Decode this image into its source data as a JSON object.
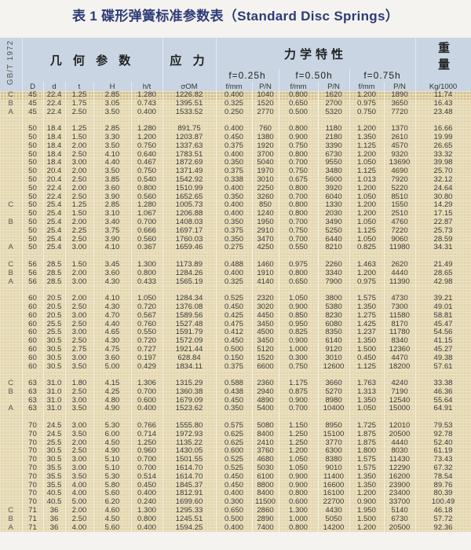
{
  "title": "表 1  碟形弹簧标准参数表（Standard Disc Springs）",
  "header": {
    "standard": "GB/T 1972",
    "geometry": "几 何 参 数",
    "stress": "应 力",
    "mechanics": "力学特性",
    "weight": "重量",
    "f025": "f=0.25h",
    "f050": "f=0.50h",
    "f075": "f=0.75h",
    "columns": [
      "D",
      "d",
      "t",
      "H",
      "h/t",
      "σOM",
      "f/mm",
      "P/N",
      "f/mm",
      "P/N",
      "f/mm",
      "P/N",
      "Kg/1000"
    ]
  },
  "colors": {
    "title": "#2e3b78",
    "header_bg": "#c9d5e2",
    "row_bg": "#e3d6ad"
  },
  "rows": [
    [
      "C",
      "45",
      "22.4",
      "1.25",
      "2.85",
      "1.280",
      "1226.82",
      "0.400",
      "1040",
      "0.800",
      "1620",
      "1.200",
      "1890",
      "11.74"
    ],
    [
      "B",
      "45",
      "22.4",
      "1.75",
      "3.05",
      "0.743",
      "1395.51",
      "0.325",
      "1520",
      "0.650",
      "2700",
      "0.975",
      "3650",
      "16.43"
    ],
    [
      "A",
      "45",
      "22.4",
      "2.50",
      "3.50",
      "0.400",
      "1533.52",
      "0.250",
      "2770",
      "0.500",
      "5320",
      "0.750",
      "7720",
      "23.48"
    ],
    null,
    [
      "",
      "50",
      "18.4",
      "1.25",
      "2.85",
      "1.280",
      "891.75",
      "0.400",
      "760",
      "0.800",
      "1180",
      "1.200",
      "1370",
      "16.66"
    ],
    [
      "",
      "50",
      "18.4",
      "1.50",
      "3.30",
      "1.200",
      "1203.87",
      "0.450",
      "1380",
      "0.900",
      "2180",
      "1.350",
      "2610",
      "19.99"
    ],
    [
      "",
      "50",
      "18.4",
      "2.00",
      "3.50",
      "0.750",
      "1337.63",
      "0.375",
      "1920",
      "0.750",
      "3390",
      "1.125",
      "4570",
      "26.65"
    ],
    [
      "",
      "50",
      "18.4",
      "2.50",
      "4.10",
      "0.640",
      "1783.51",
      "0.400",
      "3700",
      "0.800",
      "6730",
      "1.200",
      "9320",
      "33.32"
    ],
    [
      "",
      "50",
      "18.4",
      "3.00",
      "4.40",
      "0.467",
      "1872.69",
      "0.350",
      "5040",
      "0.700",
      "9550",
      "1.050",
      "13690",
      "39.98"
    ],
    [
      "",
      "50",
      "20.4",
      "2.00",
      "3.50",
      "0.750",
      "1371.49",
      "0.375",
      "1970",
      "0.750",
      "3480",
      "1.125",
      "4690",
      "25.70"
    ],
    [
      "",
      "50",
      "20.4",
      "2.50",
      "3.85",
      "0.540",
      "1542.92",
      "0.338",
      "3010",
      "0.675",
      "5600",
      "1.013",
      "7920",
      "32.12"
    ],
    [
      "",
      "50",
      "22.4",
      "2.00",
      "3.60",
      "0.800",
      "1510.99",
      "0.400",
      "2250",
      "0.800",
      "3920",
      "1.200",
      "5220",
      "24.64"
    ],
    [
      "",
      "50",
      "22.4",
      "2.50",
      "3.90",
      "0.560",
      "1652.65",
      "0.350",
      "3260",
      "0.700",
      "6040",
      "1.050",
      "8510",
      "30.80"
    ],
    [
      "C",
      "50",
      "25.4",
      "1.25",
      "2.85",
      "1.280",
      "1005.73",
      "0.400",
      "850",
      "0.800",
      "1330",
      "1.200",
      "1550",
      "14.29"
    ],
    [
      "",
      "50",
      "25.4",
      "1.50",
      "3.10",
      "1.067",
      "1206.88",
      "0.400",
      "1240",
      "0.800",
      "2030",
      "1.200",
      "2510",
      "17.15"
    ],
    [
      "B",
      "50",
      "25.4",
      "2.00",
      "3.40",
      "0.700",
      "1408.03",
      "0.350",
      "1950",
      "0.700",
      "3490",
      "1.050",
      "4760",
      "22.87"
    ],
    [
      "",
      "50",
      "25.4",
      "2.25",
      "3.75",
      "0.666",
      "1697.17",
      "0.375",
      "2910",
      "0.750",
      "5250",
      "1.125",
      "7220",
      "25.73"
    ],
    [
      "",
      "50",
      "25.4",
      "2.50",
      "3.90",
      "0.560",
      "1760.03",
      "0.350",
      "3470",
      "0.700",
      "6440",
      "1.050",
      "9060",
      "28.59"
    ],
    [
      "A",
      "50",
      "25.4",
      "3.00",
      "4.10",
      "0.367",
      "1659.46",
      "0.275",
      "4250",
      "0.550",
      "8210",
      "0.825",
      "11980",
      "34.31"
    ],
    null,
    [
      "C",
      "56",
      "28.5",
      "1.50",
      "3.45",
      "1.300",
      "1173.89",
      "0.488",
      "1460",
      "0.975",
      "2260",
      "1.463",
      "2620",
      "21.49"
    ],
    [
      "B",
      "56",
      "28.5",
      "2.00",
      "3.60",
      "0.800",
      "1284.26",
      "0.400",
      "1910",
      "0.800",
      "3340",
      "1.200",
      "4440",
      "28.65"
    ],
    [
      "A",
      "56",
      "28.5",
      "3.00",
      "4.30",
      "0.433",
      "1565.19",
      "0.325",
      "4140",
      "0.650",
      "7900",
      "0.975",
      "11390",
      "42.98"
    ],
    null,
    [
      "",
      "60",
      "20.5",
      "2.00",
      "4.10",
      "1.050",
      "1284.34",
      "0.525",
      "2320",
      "1.050",
      "3800",
      "1.575",
      "4730",
      "39.21"
    ],
    [
      "",
      "60",
      "20.5",
      "2.50",
      "4.30",
      "0.720",
      "1376.08",
      "0.450",
      "3020",
      "0.900",
      "5380",
      "1.350",
      "7300",
      "49.01"
    ],
    [
      "",
      "60",
      "20.5",
      "3.00",
      "4.70",
      "0.567",
      "1589.56",
      "0.425",
      "4450",
      "0.850",
      "8230",
      "1.275",
      "11580",
      "58.81"
    ],
    [
      "",
      "60",
      "25.5",
      "2.50",
      "4.40",
      "0.760",
      "1527.48",
      "0.475",
      "3450",
      "0.950",
      "6080",
      "1.425",
      "8170",
      "45.47"
    ],
    [
      "",
      "60",
      "25.5",
      "3.00",
      "4.65",
      "0.550",
      "1591.79",
      "0.412",
      "4500",
      "0.825",
      "8350",
      "1.237",
      "11780",
      "54.56"
    ],
    [
      "",
      "60",
      "30.5",
      "2.50",
      "4.30",
      "0.720",
      "1572.09",
      "0.450",
      "3450",
      "0.900",
      "6140",
      "1.350",
      "8340",
      "41.15"
    ],
    [
      "",
      "60",
      "30.5",
      "2.75",
      "4.75",
      "0.727",
      "1921.44",
      "0.500",
      "5120",
      "1.000",
      "9120",
      "1.500",
      "12360",
      "45.27"
    ],
    [
      "",
      "60",
      "30.5",
      "3.00",
      "3.60",
      "0.197",
      "628.84",
      "0.150",
      "1520",
      "0.300",
      "3010",
      "0.450",
      "4470",
      "49.38"
    ],
    [
      "",
      "60",
      "30.5",
      "3.50",
      "5.00",
      "0.429",
      "1834.11",
      "0.375",
      "6600",
      "0.750",
      "12600",
      "1.125",
      "18200",
      "57.61"
    ],
    null,
    [
      "C",
      "63",
      "31.0",
      "1.80",
      "4.15",
      "1.306",
      "1315.29",
      "0.588",
      "2360",
      "1.175",
      "3660",
      "1.763",
      "4240",
      "33.38"
    ],
    [
      "B",
      "63",
      "31.0",
      "2.50",
      "4.25",
      "0.700",
      "1360.38",
      "0.438",
      "2940",
      "0.875",
      "5270",
      "1.313",
      "7190",
      "46.36"
    ],
    [
      "",
      "63",
      "31.0",
      "3.00",
      "4.80",
      "0.600",
      "1679.09",
      "0.450",
      "4890",
      "0.900",
      "8980",
      "1.350",
      "12540",
      "55.64"
    ],
    [
      "A",
      "63",
      "31.0",
      "3.50",
      "4.90",
      "0.400",
      "1523.62",
      "0.350",
      "5400",
      "0.700",
      "10400",
      "1.050",
      "15000",
      "64.91"
    ],
    null,
    [
      "",
      "70",
      "24.5",
      "3.00",
      "5.30",
      "0.766",
      "1555.80",
      "0.575",
      "5080",
      "1.150",
      "8950",
      "1.725",
      "12010",
      "79.53"
    ],
    [
      "",
      "70",
      "24.5",
      "3.50",
      "6.00",
      "0.714",
      "1972.93",
      "0.625",
      "8400",
      "1.250",
      "15100",
      "1.875",
      "20500",
      "92.78"
    ],
    [
      "",
      "70",
      "25.5",
      "2.00",
      "4.50",
      "1.250",
      "1135.22",
      "0.625",
      "2410",
      "1.250",
      "3770",
      "1.875",
      "4440",
      "52.40"
    ],
    [
      "",
      "70",
      "30.5",
      "2.50",
      "4.90",
      "0.960",
      "1430.05",
      "0.600",
      "3760",
      "1.200",
      "6300",
      "1.800",
      "8030",
      "61.19"
    ],
    [
      "",
      "70",
      "30.5",
      "3.00",
      "5.10",
      "0.700",
      "1501.55",
      "0.525",
      "4680",
      "1.050",
      "8380",
      "1.575",
      "11430",
      "73.43"
    ],
    [
      "",
      "70",
      "35.5",
      "3.00",
      "5.10",
      "0.700",
      "1614.70",
      "0.525",
      "5030",
      "1.050",
      "9010",
      "1.575",
      "12290",
      "67.32"
    ],
    [
      "",
      "70",
      "35.5",
      "3.50",
      "5.30",
      "0.514",
      "1614.70",
      "0.450",
      "6100",
      "0.900",
      "11400",
      "1.350",
      "16200",
      "78.54"
    ],
    [
      "",
      "70",
      "35.5",
      "4.00",
      "5.80",
      "0.450",
      "1845.37",
      "0.450",
      "8800",
      "0.900",
      "16600",
      "1.350",
      "23900",
      "89.76"
    ],
    [
      "",
      "70",
      "40.5",
      "4.00",
      "5.60",
      "0.400",
      "1812.91",
      "0.400",
      "8400",
      "0.800",
      "16100",
      "1.200",
      "23400",
      "80.39"
    ],
    [
      "",
      "70",
      "40.5",
      "5.00",
      "6.20",
      "0.240",
      "1699.60",
      "0.300",
      "11500",
      "0.600",
      "22700",
      "0.900",
      "33700",
      "100.49"
    ],
    [
      "C",
      "71",
      "36",
      "2.00",
      "4.60",
      "1.300",
      "1295.33",
      "0.650",
      "2860",
      "1.300",
      "4430",
      "1.950",
      "5140",
      "46.18"
    ],
    [
      "B",
      "71",
      "36",
      "2.50",
      "4.50",
      "0.800",
      "1245.51",
      "0.500",
      "2890",
      "1.000",
      "5050",
      "1.500",
      "6730",
      "57.72"
    ],
    [
      "A",
      "71",
      "36",
      "4.00",
      "5.60",
      "0.400",
      "1594.25",
      "0.400",
      "7400",
      "0.800",
      "14200",
      "1.200",
      "20500",
      "92.36"
    ]
  ]
}
